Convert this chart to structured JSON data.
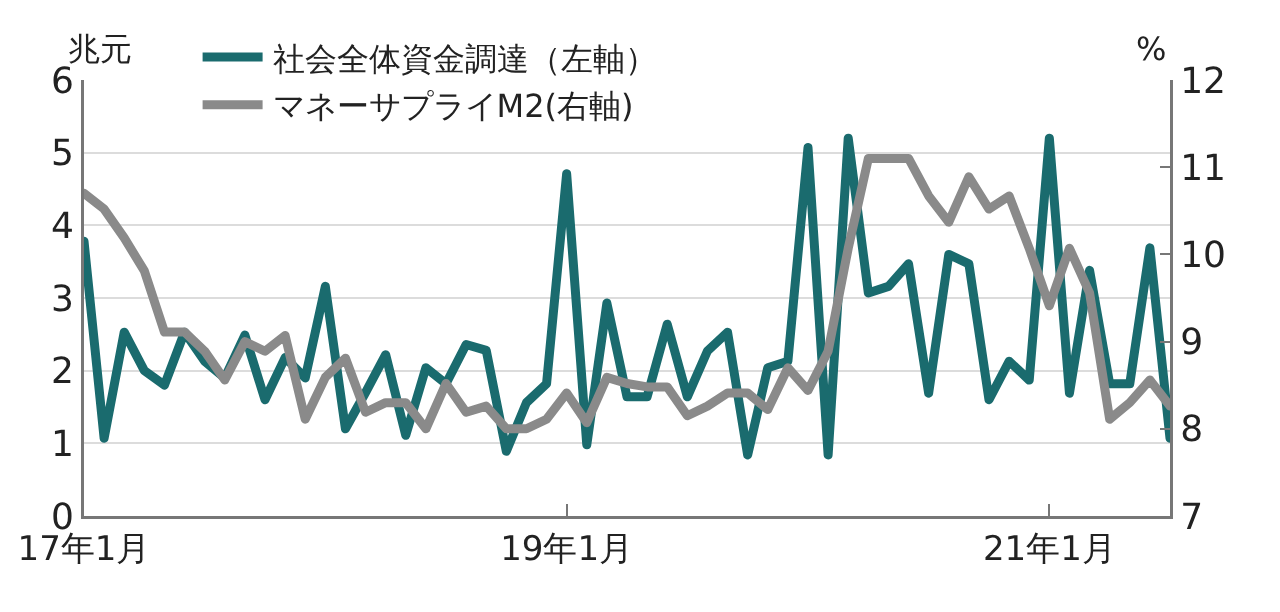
{
  "chart_data": {
    "type": "line",
    "ylabel": "兆元",
    "y2label": "%",
    "categories": [
      "17年1月",
      null,
      null,
      null,
      null,
      null,
      null,
      null,
      null,
      null,
      null,
      null,
      null,
      null,
      null,
      null,
      null,
      null,
      null,
      null,
      null,
      null,
      null,
      null,
      "19年1月",
      null,
      null,
      null,
      null,
      null,
      null,
      null,
      null,
      null,
      null,
      null,
      null,
      null,
      null,
      null,
      null,
      null,
      null,
      null,
      null,
      null,
      null,
      null,
      "21年1月",
      null,
      null,
      null,
      null,
      null,
      null
    ],
    "series": [
      {
        "name": "社会全体資金調達（左軸）",
        "color": "#1a6b6e",
        "values": [
          3.78,
          1.07,
          2.53,
          2.0,
          1.8,
          2.53,
          2.13,
          1.9,
          2.49,
          1.6,
          2.18,
          1.9,
          3.16,
          1.2,
          1.7,
          2.22,
          1.11,
          2.04,
          1.82,
          2.36,
          2.28,
          0.89,
          1.56,
          1.82,
          4.71,
          0.98,
          2.93,
          1.64,
          1.64,
          2.64,
          1.64,
          2.27,
          2.53,
          0.84,
          2.04,
          2.13,
          5.07,
          0.84,
          5.2,
          3.07,
          3.16,
          3.47,
          1.69,
          3.6,
          3.47,
          1.6,
          2.13,
          1.87,
          5.2,
          1.69,
          3.38,
          1.82,
          1.82,
          3.69,
          1.07
        ]
      },
      {
        "name": "マネーサプライM2(右軸)",
        "color": "#8a8a8a",
        "axis": "y2",
        "values": [
          10.7,
          10.52,
          10.19,
          9.81,
          9.11,
          9.11,
          8.89,
          8.56,
          9.0,
          8.89,
          9.07,
          8.11,
          8.59,
          8.81,
          8.19,
          8.3,
          8.3,
          8.0,
          8.52,
          8.19,
          8.26,
          8.0,
          8.0,
          8.11,
          8.41,
          8.07,
          8.59,
          8.52,
          8.48,
          8.48,
          8.15,
          8.26,
          8.41,
          8.41,
          8.22,
          8.7,
          8.44,
          8.89,
          10.07,
          11.1,
          11.1,
          11.1,
          10.67,
          10.37,
          10.89,
          10.52,
          10.67,
          10.07,
          9.41,
          10.07,
          9.56,
          8.11,
          8.3,
          8.56,
          8.26
        ]
      }
    ],
    "ylim": [
      0,
      6
    ],
    "yticks": [
      0,
      1,
      2,
      3,
      4,
      5,
      6
    ],
    "y2lim": [
      7,
      12
    ],
    "y2ticks": [
      7,
      8,
      9,
      10,
      11,
      12
    ],
    "grid": "y",
    "legend": "top left",
    "marker": "none",
    "line_style": "solid"
  }
}
